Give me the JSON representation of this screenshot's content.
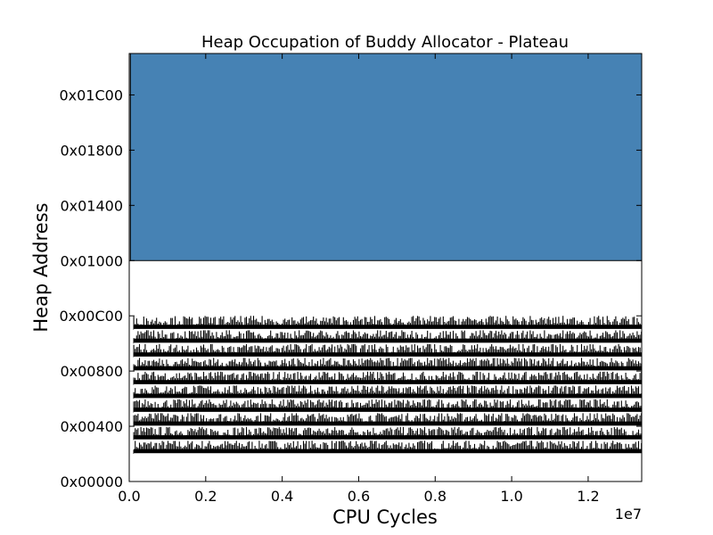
{
  "chart_data": {
    "type": "area",
    "title": "Heap Occupation of Buddy Allocator - Plateau",
    "xlabel": "CPU Cycles",
    "ylabel": "Heap Address",
    "x_offset_label": "1e7",
    "xlim": [
      0,
      13400000
    ],
    "ylim": [
      0,
      7936
    ],
    "x_ticks": [
      {
        "value": 0,
        "label": "0.0"
      },
      {
        "value": 2000000,
        "label": "0.2"
      },
      {
        "value": 4000000,
        "label": "0.4"
      },
      {
        "value": 6000000,
        "label": "0.6"
      },
      {
        "value": 8000000,
        "label": "0.8"
      },
      {
        "value": 10000000,
        "label": "1.0"
      },
      {
        "value": 12000000,
        "label": "1.2"
      }
    ],
    "y_ticks": [
      {
        "value": 0,
        "label": "0x00000"
      },
      {
        "value": 1024,
        "label": "0x00400"
      },
      {
        "value": 2048,
        "label": "0x00800"
      },
      {
        "value": 3072,
        "label": "0x00C00"
      },
      {
        "value": 4096,
        "label": "0x01000"
      },
      {
        "value": 5120,
        "label": "0x01400"
      },
      {
        "value": 6144,
        "label": "0x01800"
      },
      {
        "value": 7168,
        "label": "0x01C00"
      }
    ],
    "regions": [
      {
        "name": "",
        "x_start": 30000,
        "x_end": 13400000,
        "y_start": 4096,
        "y_end": 7936,
        "color": "#4682b4"
      }
    ],
    "bands": {
      "x_start": 120000,
      "x_end": 13400000,
      "y_starts": [
        512,
        768,
        1024,
        1280,
        1536,
        1792,
        2048,
        2304,
        2560,
        2816
      ],
      "band_height": 256,
      "color": "#000000"
    }
  }
}
